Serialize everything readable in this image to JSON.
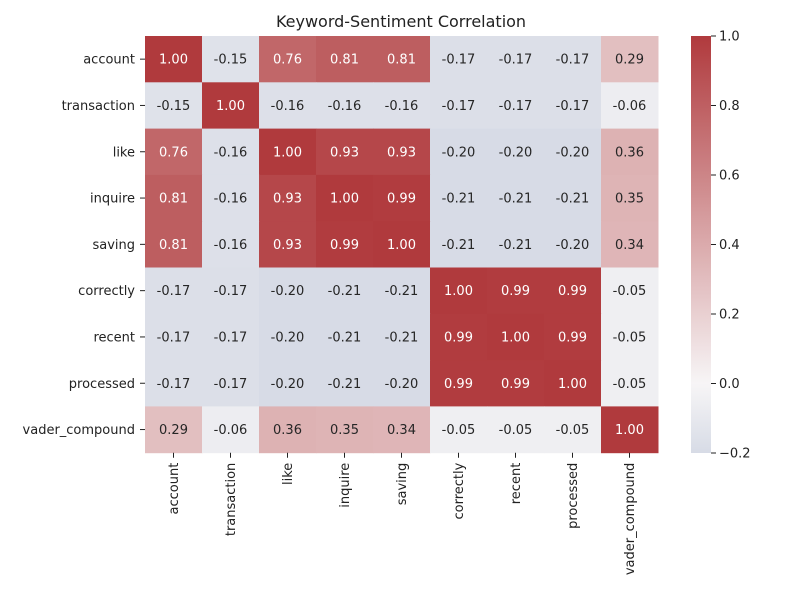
{
  "chart_data": {
    "type": "heatmap",
    "title": "Keyword-Sentiment Correlation",
    "rows": [
      "account",
      "transaction",
      "like",
      "inquire",
      "saving",
      "correctly",
      "recent",
      "processed",
      "vader_compound"
    ],
    "columns": [
      "account",
      "transaction",
      "like",
      "inquire",
      "saving",
      "correctly",
      "recent",
      "processed",
      "vader_compound"
    ],
    "values": [
      [
        1.0,
        -0.15,
        0.76,
        0.81,
        0.81,
        -0.17,
        -0.17,
        -0.17,
        0.29
      ],
      [
        -0.15,
        1.0,
        -0.16,
        -0.16,
        -0.16,
        -0.17,
        -0.17,
        -0.17,
        -0.06
      ],
      [
        0.76,
        -0.16,
        1.0,
        0.93,
        0.93,
        -0.2,
        -0.2,
        -0.2,
        0.36
      ],
      [
        0.81,
        -0.16,
        0.93,
        1.0,
        0.99,
        -0.21,
        -0.21,
        -0.21,
        0.35
      ],
      [
        0.81,
        -0.16,
        0.93,
        0.99,
        1.0,
        -0.21,
        -0.21,
        -0.2,
        0.34
      ],
      [
        -0.17,
        -0.17,
        -0.2,
        -0.21,
        -0.21,
        1.0,
        0.99,
        0.99,
        -0.05
      ],
      [
        -0.17,
        -0.17,
        -0.2,
        -0.21,
        -0.21,
        0.99,
        1.0,
        0.99,
        -0.05
      ],
      [
        -0.17,
        -0.17,
        -0.2,
        -0.21,
        -0.2,
        0.99,
        0.99,
        1.0,
        -0.05
      ],
      [
        0.29,
        -0.06,
        0.36,
        0.35,
        0.34,
        -0.05,
        -0.05,
        -0.05,
        1.0
      ]
    ],
    "value_format": "2 decimals",
    "colorbar": {
      "min": -0.2,
      "max": 1.0,
      "center": 0.0,
      "ticks": [
        "-0.2",
        "0.0",
        "0.2",
        "0.4",
        "0.6",
        "0.8",
        "1.0"
      ],
      "colormap": "diverging blue-white-red",
      "low_color": "#d7dbe6",
      "mid_color": "#f7f5f6",
      "high_color": "#b03a3d"
    }
  }
}
